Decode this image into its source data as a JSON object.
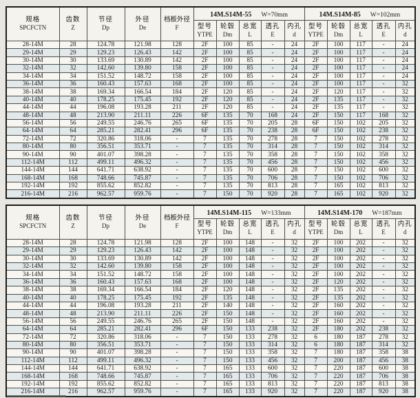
{
  "page": {
    "background": "#e9e7e1"
  },
  "columns": {
    "spec": {
      "zh": "规格",
      "en": "SPCFCTN"
    },
    "teeth": {
      "zh": "齿数",
      "en": "Z"
    },
    "pitch_dia": {
      "zh": "节径",
      "en": "Dp"
    },
    "outer_dia": {
      "zh": "外径",
      "en": "De"
    },
    "flange_dia": {
      "zh": "档板外径",
      "en": "F"
    },
    "group_cols": [
      {
        "zh": "型号",
        "en": "YTPE"
      },
      {
        "zh": "轮毂",
        "en": "Dm"
      },
      {
        "zh": "总宽",
        "en": "L"
      },
      {
        "zh": "透孔",
        "en": "E"
      },
      {
        "zh": "内孔",
        "en": "d"
      }
    ]
  },
  "tables": [
    {
      "groups": [
        {
          "model": "14M.S14M-55",
          "width": "W=70mm"
        },
        {
          "model": "14M.S14M-85",
          "width": "W=102mm"
        }
      ],
      "rows": [
        [
          "28-14M",
          "28",
          "124.78",
          "121.98",
          "128",
          "2F",
          "100",
          "85",
          "-",
          "24",
          "2F",
          "100",
          "117",
          "-",
          "24"
        ],
        [
          "29-14M",
          "29",
          "129.23",
          "126.43",
          "142",
          "2F",
          "100",
          "85",
          "-",
          "24",
          "2F",
          "100",
          "117",
          "-",
          "24"
        ],
        [
          "30-14M",
          "30",
          "133.69",
          "130.89",
          "142",
          "2F",
          "100",
          "85",
          "-",
          "24",
          "2F",
          "100",
          "117",
          "-",
          "24"
        ],
        [
          "32-14M",
          "32",
          "142.60",
          "139.80",
          "158",
          "2F",
          "100",
          "85",
          "-",
          "24",
          "2F",
          "100",
          "117",
          "-",
          "24"
        ],
        [
          "34-14M",
          "34",
          "151.52",
          "148.72",
          "158",
          "2F",
          "100",
          "85",
          "-",
          "24",
          "2F",
          "100",
          "117",
          "-",
          "24"
        ],
        [
          "36-14M",
          "36",
          "160.43",
          "157.63",
          "168",
          "2F",
          "100",
          "85",
          "-",
          "24",
          "2F",
          "100",
          "117",
          "-",
          "32"
        ],
        [
          "38-14M",
          "38",
          "169.34",
          "166.54",
          "184",
          "2F",
          "120",
          "85",
          "-",
          "24",
          "2F",
          "120",
          "117",
          "-",
          "32"
        ],
        [
          "40-14M",
          "40",
          "178.25",
          "175.45",
          "192",
          "2F",
          "120",
          "85",
          "-",
          "24",
          "2F",
          "135",
          "117",
          "-",
          "32"
        ],
        [
          "44-14M",
          "44",
          "196.08",
          "193.28",
          "211",
          "2F",
          "120",
          "85",
          "-",
          "24",
          "2F",
          "135",
          "117",
          "-",
          "32"
        ],
        [
          "48-14M",
          "48",
          "213.90",
          "211.11",
          "226",
          "6F",
          "135",
          "70",
          "168",
          "24",
          "2F",
          "150",
          "117",
          "168",
          "32"
        ],
        [
          "56-14M",
          "56",
          "249.55",
          "246.76",
          "265",
          "6F",
          "135",
          "70",
          "205",
          "28",
          "6F",
          "150",
          "102",
          "205",
          "32"
        ],
        [
          "64-14M",
          "64",
          "285.21",
          "282.41",
          "296",
          "6F",
          "135",
          "70",
          "238",
          "28",
          "6F",
          "150",
          "102",
          "238",
          "32"
        ],
        [
          "72-14M",
          "72",
          "320.86",
          "318.06",
          "-",
          "7",
          "135",
          "70",
          "278",
          "28",
          "7",
          "150",
          "102",
          "278",
          "32"
        ],
        [
          "80-14M",
          "80",
          "356.51",
          "353.71",
          "-",
          "7",
          "135",
          "70",
          "314",
          "28",
          "7",
          "150",
          "102",
          "314",
          "32"
        ],
        [
          "90-14M",
          "90",
          "401.07",
          "398.28",
          "-",
          "7",
          "135",
          "70",
          "358",
          "28",
          "7",
          "150",
          "102",
          "358",
          "32"
        ],
        [
          "112-14M",
          "112",
          "499.11",
          "496.32",
          "-",
          "7",
          "135",
          "70",
          "456",
          "28",
          "7",
          "150",
          "102",
          "456",
          "32"
        ],
        [
          "144-14M",
          "144",
          "641.71",
          "638.92",
          "-",
          "7",
          "135",
          "70",
          "600",
          "28",
          "7",
          "150",
          "102",
          "600",
          "32"
        ],
        [
          "168-14M",
          "168",
          "748.66",
          "745.87",
          "-",
          "7",
          "135",
          "70",
          "706",
          "28",
          "7",
          "150",
          "102",
          "706",
          "32"
        ],
        [
          "192-14M",
          "192",
          "855.62",
          "852.82",
          "-",
          "7",
          "135",
          "70",
          "813",
          "28",
          "7",
          "165",
          "102",
          "813",
          "32"
        ],
        [
          "216-14M",
          "216",
          "962.57",
          "959.76",
          "-",
          "7",
          "150",
          "70",
          "920",
          "28",
          "7",
          "165",
          "102",
          "920",
          "32"
        ]
      ]
    },
    {
      "groups": [
        {
          "model": "14M.S14M-115",
          "width": "W=133mm"
        },
        {
          "model": "14M.S14M-170",
          "width": "W=187mm"
        }
      ],
      "rows": [
        [
          "28-14M",
          "28",
          "124.78",
          "121.98",
          "128",
          "2F",
          "100",
          "148",
          "-",
          "32",
          "2F",
          "100",
          "202",
          "-",
          "32"
        ],
        [
          "29-14M",
          "29",
          "129.23",
          "126.43",
          "142",
          "2F",
          "100",
          "148",
          "-",
          "32",
          "2F",
          "100",
          "202",
          "-",
          "32"
        ],
        [
          "30-14M",
          "30",
          "133.69",
          "130.89",
          "142",
          "2F",
          "100",
          "148",
          "-",
          "32",
          "2F",
          "100",
          "202",
          "-",
          "32"
        ],
        [
          "32-14M",
          "32",
          "142.60",
          "139.80",
          "158",
          "2F",
          "100",
          "148",
          "-",
          "32",
          "2F",
          "100",
          "202",
          "-",
          "32"
        ],
        [
          "34-14M",
          "34",
          "151.52",
          "148.72",
          "158",
          "2F",
          "100",
          "148",
          "-",
          "32",
          "2F",
          "100",
          "202",
          "-",
          "32"
        ],
        [
          "36-14M",
          "36",
          "160.43",
          "157.63",
          "168",
          "2F",
          "100",
          "148",
          "-",
          "32",
          "2F",
          "120",
          "202",
          "-",
          "32"
        ],
        [
          "38-14M",
          "38",
          "169.34",
          "166.54",
          "184",
          "2F",
          "120",
          "148",
          "-",
          "32",
          "2F",
          "135",
          "202",
          "-",
          "32"
        ],
        [
          "40-14M",
          "40",
          "178.25",
          "175.45",
          "192",
          "2F",
          "135",
          "148",
          "-",
          "32",
          "2F",
          "135",
          "202",
          "-",
          "32"
        ],
        [
          "44-14M",
          "44",
          "196.08",
          "193.28",
          "211",
          "2F",
          "140",
          "148",
          "-",
          "32",
          "2F",
          "160",
          "202",
          "-",
          "32"
        ],
        [
          "48-14M",
          "48",
          "213.90",
          "211.11",
          "226",
          "2F",
          "150",
          "148",
          "-",
          "32",
          "2F",
          "160",
          "202",
          "-",
          "32"
        ],
        [
          "56-14M",
          "56",
          "249.55",
          "246.76",
          "265",
          "2F",
          "150",
          "148",
          "-",
          "32",
          "2F",
          "160",
          "202",
          "-",
          "32"
        ],
        [
          "64-14M",
          "64",
          "285.21",
          "282.41",
          "296",
          "6F",
          "150",
          "133",
          "238",
          "32",
          "2F",
          "180",
          "202",
          "238",
          "32"
        ],
        [
          "72-14M",
          "72",
          "320.86",
          "318.06",
          "-",
          "7",
          "150",
          "133",
          "278",
          "32",
          "6",
          "180",
          "187",
          "278",
          "32"
        ],
        [
          "80-14M",
          "80",
          "356.51",
          "353.71",
          "-",
          "7",
          "150",
          "133",
          "314",
          "32",
          "6",
          "180",
          "187",
          "314",
          "32"
        ],
        [
          "90-14M",
          "90",
          "401.07",
          "398.28",
          "-",
          "7",
          "150",
          "133",
          "358",
          "32",
          "7",
          "180",
          "187",
          "358",
          "38"
        ],
        [
          "112-14M",
          "112",
          "499.11",
          "496.32",
          "-",
          "7",
          "150",
          "133",
          "456",
          "32",
          "7",
          "200",
          "187",
          "456",
          "38"
        ],
        [
          "144-14M",
          "144",
          "641.71",
          "638.92",
          "-",
          "7",
          "165",
          "133",
          "600",
          "32",
          "7",
          "220",
          "187",
          "600",
          "38"
        ],
        [
          "168-14M",
          "168",
          "748.66",
          "745.87",
          "-",
          "7",
          "165",
          "133",
          "706",
          "32",
          "7",
          "220",
          "187",
          "706",
          "38"
        ],
        [
          "192-14M",
          "192",
          "855.62",
          "852.82",
          "-",
          "7",
          "165",
          "133",
          "813",
          "32",
          "7",
          "220",
          "187",
          "813",
          "38"
        ],
        [
          "216-14M",
          "216",
          "962.57",
          "959.76",
          "-",
          "7",
          "165",
          "133",
          "920",
          "32",
          "7",
          "220",
          "187",
          "920",
          "38"
        ]
      ]
    }
  ]
}
